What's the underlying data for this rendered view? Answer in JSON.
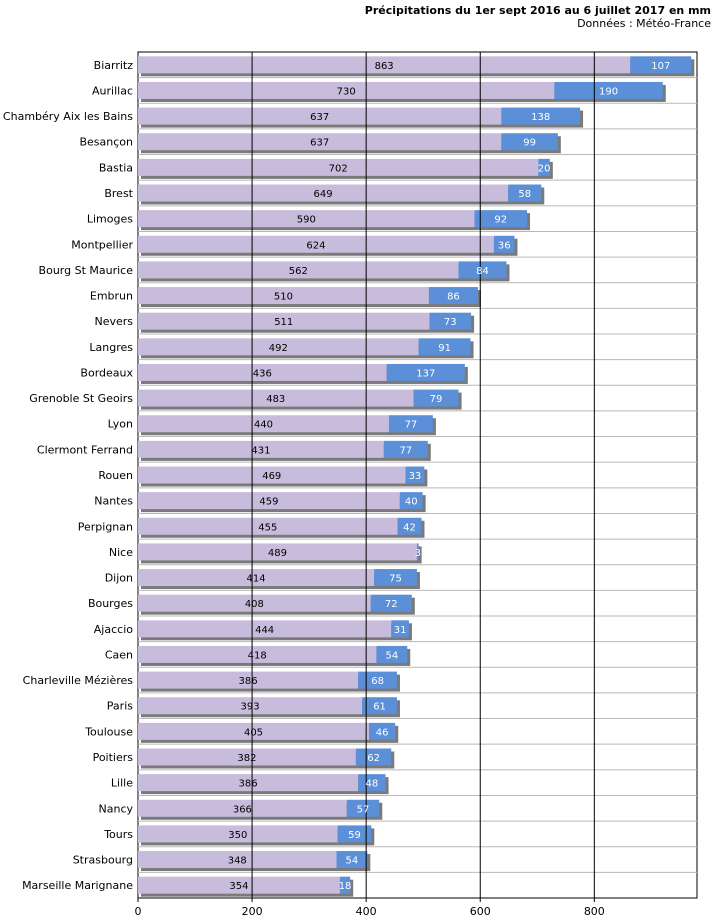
{
  "chart_data": {
    "type": "bar",
    "stacked": true,
    "orientation": "horizontal",
    "title": "Précipitations du 1er sept 2016 au 6 juillet 2017 en mm",
    "subtitle": "Données : Météo-France",
    "categories": [
      "Biarritz",
      "Aurillac",
      "Chambéry Aix les Bains",
      "Besançon",
      "Bastia",
      "Brest",
      "Limoges",
      "Montpellier",
      "Bourg St Maurice",
      "Embrun",
      "Nevers",
      "Langres",
      "Bordeaux",
      "Grenoble St Geoirs",
      "Lyon",
      "Clermont Ferrand",
      "Rouen",
      "Nantes",
      "Perpignan",
      "Nice",
      "Dijon",
      "Bourges",
      "Ajaccio",
      "Caen",
      "Charleville Mézières",
      "Paris",
      "Toulouse",
      "Poitiers",
      "Lille",
      "Nancy",
      "Tours",
      "Strasbourg",
      "Marseille Marignane"
    ],
    "series": [
      {
        "values": [
          863,
          730,
          637,
          637,
          702,
          649,
          590,
          624,
          562,
          510,
          511,
          492,
          436,
          483,
          440,
          431,
          469,
          459,
          455,
          489,
          414,
          408,
          444,
          418,
          386,
          393,
          405,
          382,
          386,
          366,
          350,
          348,
          354
        ],
        "color": "#c8bcdc"
      },
      {
        "values": [
          107,
          190,
          138,
          99,
          20,
          58,
          92,
          36,
          84,
          86,
          73,
          91,
          137,
          79,
          77,
          77,
          33,
          40,
          42,
          3,
          75,
          72,
          31,
          54,
          68,
          61,
          46,
          62,
          48,
          57,
          59,
          54,
          18
        ],
        "color": "#5b8fd8"
      }
    ],
    "xlim": [
      0,
      980
    ],
    "xticks": [
      0,
      200,
      400,
      600,
      800
    ],
    "grid": true
  }
}
